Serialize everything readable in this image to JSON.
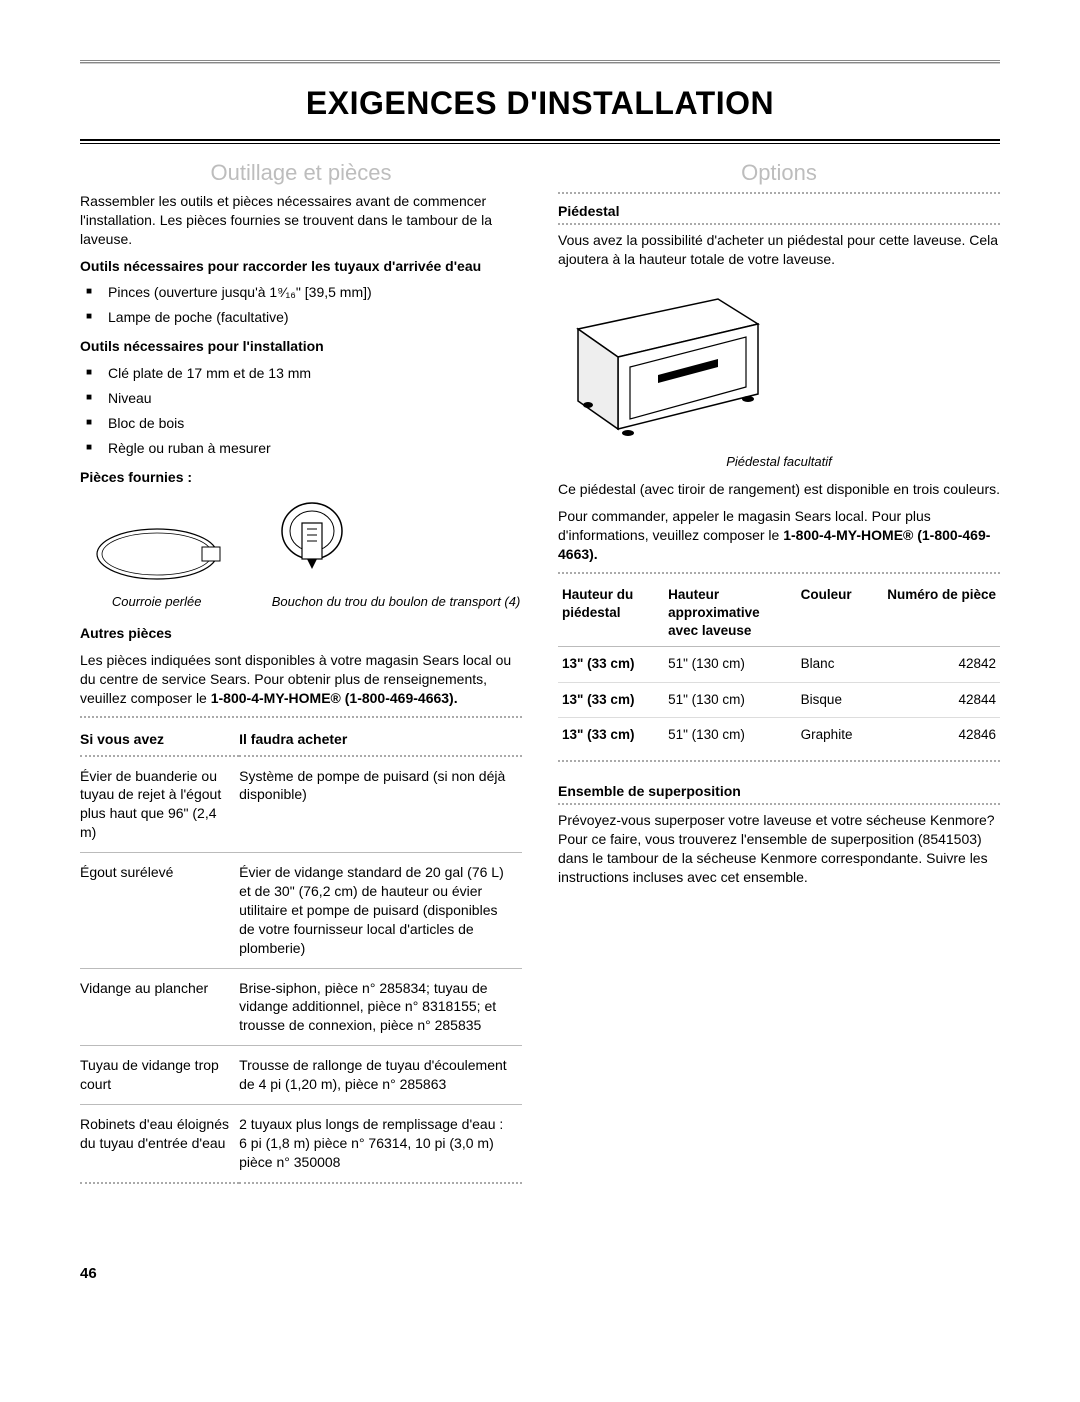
{
  "page_title": "EXIGENCES D'INSTALLATION",
  "page_number": "46",
  "left": {
    "section_title": "Outillage et pièces",
    "intro": "Rassembler les outils et pièces nécessaires avant de commencer l'installation. Les pièces fournies se trouvent dans le tambour de la laveuse.",
    "tools_water_head": "Outils nécessaires pour raccorder les tuyaux d'arrivée d'eau",
    "tools_water": [
      "Pinces (ouverture jusqu'à 1⁹⁄₁₆\" [39,5 mm])",
      "Lampe de poche (facultative)"
    ],
    "tools_install_head": "Outils nécessaires pour l'installation",
    "tools_install": [
      "Clé plate de 17 mm et de 13 mm",
      "Niveau",
      "Bloc de bois",
      "Règle ou ruban à mesurer"
    ],
    "parts_supplied_head": "Pièces fournies :",
    "part1_caption": "Courroie perlée",
    "part2_caption": "Bouchon du trou du boulon de transport (4)",
    "other_parts_head": "Autres pièces",
    "other_parts_intro_a": "Les pièces indiquées sont disponibles à votre magasin Sears local ou du centre de service Sears. Pour obtenir plus de renseignements, veuillez composer le ",
    "other_parts_intro_b": "1-800-4-MY-HOME®",
    "other_parts_intro_c": "(1-800-469-4663).",
    "buy_table": {
      "col1": "Si vous avez",
      "col2": "Il faudra acheter",
      "rows": [
        {
          "a": "Évier de buanderie ou tuyau de rejet à l'égout plus haut que 96\" (2,4 m)",
          "b": "Système de pompe de puisard (si non déjà disponible)"
        },
        {
          "a": "Égout surélevé",
          "b": "Évier de vidange standard de 20 gal (76 L) et de 30\" (76,2 cm) de hauteur ou évier utilitaire et pompe de puisard (disponibles de votre fournisseur local d'articles de plomberie)"
        },
        {
          "a": "Vidange au plancher",
          "b": "Brise-siphon, pièce n° 285834; tuyau de vidange additionnel, pièce n° 8318155; et trousse de connexion, pièce n° 285835"
        },
        {
          "a": "Tuyau de vidange trop court",
          "b": "Trousse de rallonge de tuyau d'écoulement de 4 pi (1,20 m), pièce n° 285863"
        },
        {
          "a": "Robinets d'eau éloignés du tuyau d'entrée d'eau",
          "b": "2 tuyaux plus longs de remplissage d'eau : 6 pi (1,8 m) pièce n° 76314, 10 pi (3,0 m) pièce n° 350008"
        }
      ]
    }
  },
  "right": {
    "section_title": "Options",
    "pedestal_head": "Piédestal",
    "pedestal_intro": "Vous avez la possibilité d'acheter un piédestal pour cette laveuse. Cela ajoutera à la hauteur totale de votre laveuse.",
    "pedestal_caption": "Piédestal facultatif",
    "pedestal_note": "Ce piédestal (avec tiroir de rangement) est disponible en trois couleurs.",
    "pedestal_order_a": "Pour commander, appeler le magasin Sears local. Pour plus d'informations, veuillez composer le ",
    "pedestal_order_b": "1-800-4-MY-HOME®",
    "pedestal_order_c": "(1-800-469-4663).",
    "ped_table": {
      "h1": "Hauteur du piédestal",
      "h2": "Hauteur approximative avec laveuse",
      "h3": "Couleur",
      "h4": "Numéro de pièce",
      "rows": [
        {
          "a": "13\" (33 cm)",
          "b": "51\" (130 cm)",
          "c": "Blanc",
          "d": "42842"
        },
        {
          "a": "13\" (33 cm)",
          "b": "51\" (130 cm)",
          "c": "Bisque",
          "d": "42844"
        },
        {
          "a": "13\" (33 cm)",
          "b": "51\" (130 cm)",
          "c": "Graphite",
          "d": "42846"
        }
      ]
    },
    "stack_head": "Ensemble de superposition",
    "stack_body": "Prévoyez-vous superposer votre laveuse et votre sécheuse Kenmore? Pour ce faire, vous trouverez l'ensemble de superposition (8541503) dans le tambour de la sécheuse Kenmore correspondante. Suivre les instructions incluses avec cet ensemble."
  }
}
